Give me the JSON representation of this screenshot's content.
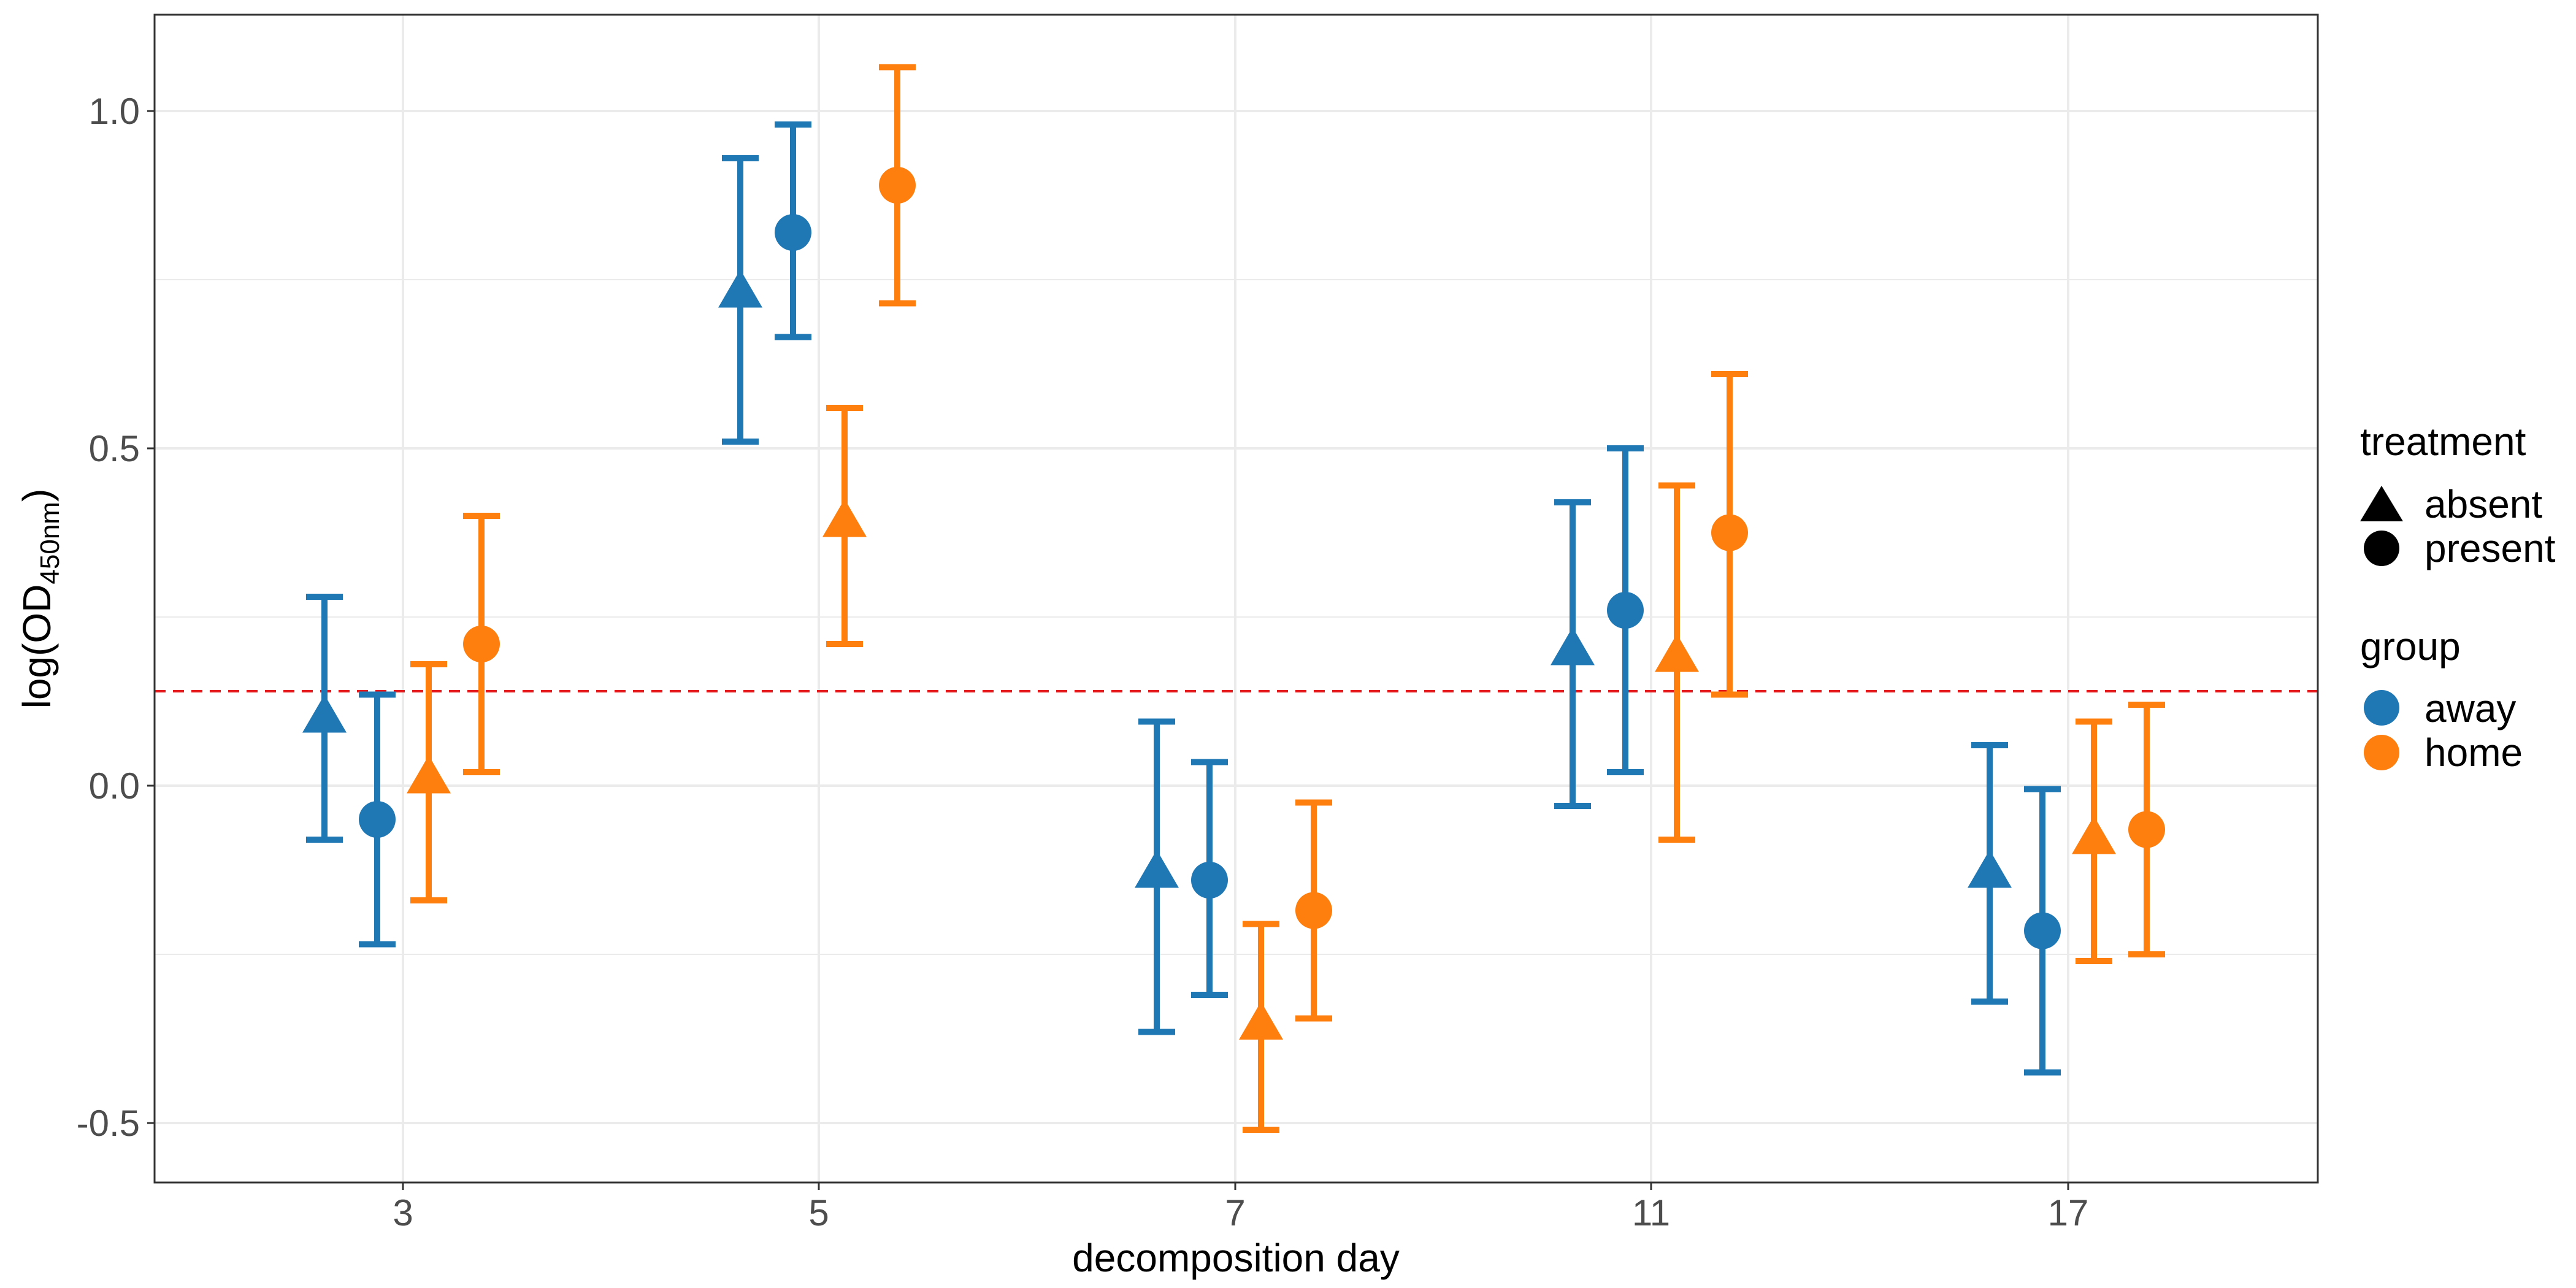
{
  "chart_data": {
    "type": "scatter",
    "xlabel": "decomposition day",
    "ylabel": {
      "main": "log(OD",
      "subscript": "450nm",
      "close": ")"
    },
    "categories": [
      "3",
      "5",
      "7",
      "11",
      "17"
    ],
    "yticks": [
      1.0,
      0.5,
      0.0,
      -0.5
    ],
    "ytick_labels": [
      "1.0",
      "0.5",
      "0.0",
      "-0.5"
    ],
    "ylim": [
      -0.57,
      1.14
    ],
    "reference_line": {
      "y": 0.14,
      "color": "#e41a1c",
      "style": "dashed"
    },
    "grid": true,
    "legend_position": "right",
    "legends": [
      {
        "title": "treatment",
        "items": [
          {
            "label": "absent",
            "shape": "triangle"
          },
          {
            "label": "present",
            "shape": "circle"
          }
        ]
      },
      {
        "title": "group",
        "items": [
          {
            "label": "away",
            "color": "#1f77b4"
          },
          {
            "label": "home",
            "color": "#ff7f0e"
          }
        ]
      }
    ],
    "series": [
      {
        "group": "away",
        "treatment": "absent",
        "color": "#1f77b4",
        "shape": "triangle",
        "values": [
          0.1,
          0.73,
          -0.13,
          0.2,
          -0.13
        ],
        "lower": [
          -0.08,
          0.51,
          -0.365,
          -0.03,
          -0.32
        ],
        "upper": [
          0.28,
          0.93,
          0.095,
          0.42,
          0.06
        ]
      },
      {
        "group": "away",
        "treatment": "present",
        "color": "#1f77b4",
        "shape": "circle",
        "values": [
          -0.05,
          0.82,
          -0.14,
          0.26,
          -0.215
        ],
        "lower": [
          -0.235,
          0.665,
          -0.31,
          0.02,
          -0.425
        ],
        "upper": [
          0.135,
          0.98,
          0.035,
          0.5,
          -0.005
        ]
      },
      {
        "group": "home",
        "treatment": "absent",
        "color": "#ff7f0e",
        "shape": "triangle",
        "values": [
          0.01,
          0.39,
          -0.355,
          0.19,
          -0.08
        ],
        "lower": [
          -0.17,
          0.21,
          -0.51,
          -0.08,
          -0.26
        ],
        "upper": [
          0.18,
          0.56,
          -0.205,
          0.445,
          0.095
        ]
      },
      {
        "group": "home",
        "treatment": "present",
        "color": "#ff7f0e",
        "shape": "circle",
        "values": [
          0.21,
          0.89,
          -0.185,
          0.375,
          -0.065
        ],
        "lower": [
          0.02,
          0.715,
          -0.345,
          0.135,
          -0.25
        ],
        "upper": [
          0.4,
          1.065,
          -0.025,
          0.61,
          0.12
        ]
      }
    ]
  }
}
